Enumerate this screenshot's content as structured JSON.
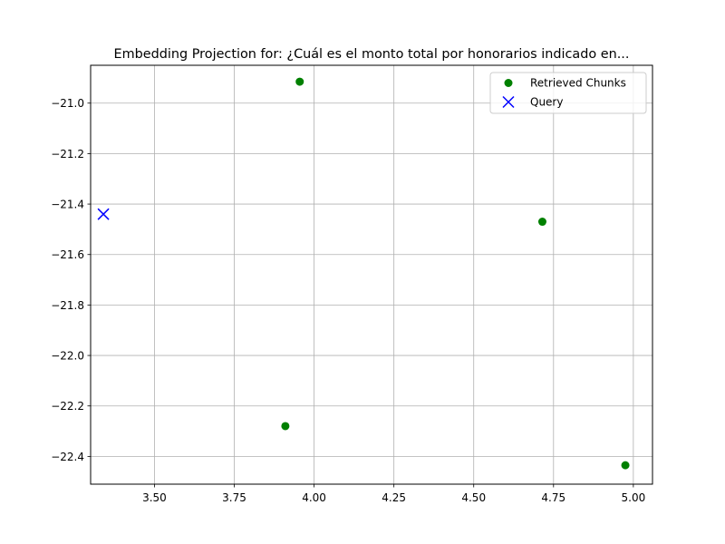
{
  "chart_data": {
    "type": "scatter",
    "title": "Embedding Projection for: ¿Cuál es el monto total por honorarios indicado en...",
    "xlabel": "",
    "ylabel": "",
    "xlim": [
      3.3,
      5.06
    ],
    "ylim": [
      -22.51,
      -20.85
    ],
    "grid": true,
    "legend_position": "upper right",
    "x_ticks": [
      3.5,
      3.75,
      4.0,
      4.25,
      4.5,
      4.75,
      5.0
    ],
    "x_tick_labels": [
      "3.50",
      "3.75",
      "4.00",
      "4.25",
      "4.50",
      "4.75",
      "5.00"
    ],
    "y_ticks": [
      -21.0,
      -21.2,
      -21.4,
      -21.6,
      -21.8,
      -22.0,
      -22.2,
      -22.4
    ],
    "y_tick_labels": [
      "−21.0",
      "−21.2",
      "−21.4",
      "−21.6",
      "−21.8",
      "−22.0",
      "−22.2",
      "−22.4"
    ],
    "series": [
      {
        "name": "Retrieved Chunks",
        "marker": "circle",
        "color": "#008000",
        "points": [
          {
            "x": 3.955,
            "y": -20.915
          },
          {
            "x": 4.715,
            "y": -21.47
          },
          {
            "x": 3.91,
            "y": -22.28
          },
          {
            "x": 4.975,
            "y": -22.435
          }
        ]
      },
      {
        "name": "Query",
        "marker": "x",
        "color": "#0000ff",
        "points": [
          {
            "x": 3.34,
            "y": -21.44
          }
        ]
      }
    ]
  }
}
